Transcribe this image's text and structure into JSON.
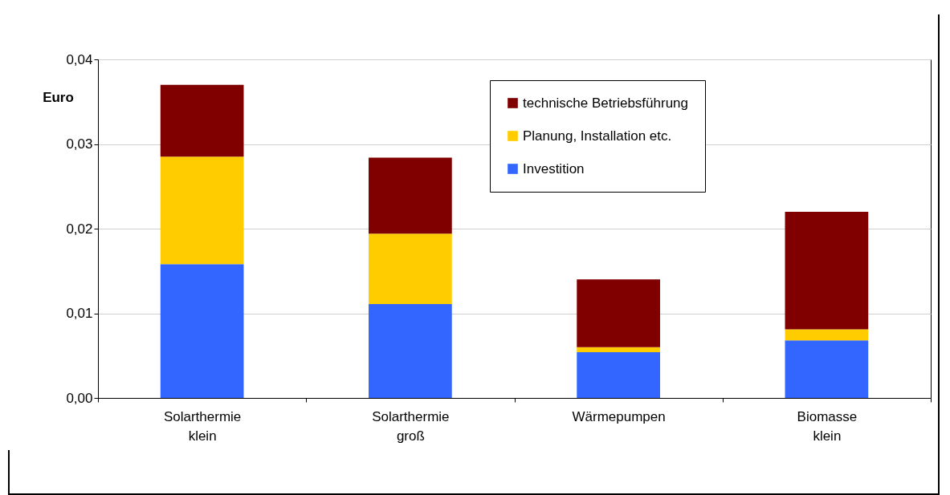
{
  "chart_data": {
    "type": "bar",
    "stacked": true,
    "ylabel": "Euro",
    "categories": [
      "Solarthermie\nklein",
      "Solarthermie\ngroß",
      "Wärmepumpen",
      "Biomasse\nklein"
    ],
    "series": [
      {
        "name": "Investition",
        "color": "#3366ff",
        "values": [
          0.0158,
          0.0111,
          0.0054,
          0.0068
        ]
      },
      {
        "name": "Planung, Installation etc.",
        "color": "#ffcc00",
        "values": [
          0.0127,
          0.0083,
          0.0006,
          0.0013
        ]
      },
      {
        "name": "technische Betriebsführung",
        "color": "#800000",
        "values": [
          0.0085,
          0.009,
          0.008,
          0.0139
        ]
      }
    ],
    "ylim": [
      0,
      0.04
    ],
    "yticks": [
      {
        "value": 0,
        "label": "0,00"
      },
      {
        "value": 0.01,
        "label": "0,01"
      },
      {
        "value": 0.02,
        "label": "0,02"
      },
      {
        "value": 0.03,
        "label": "0,03"
      },
      {
        "value": 0.04,
        "label": "0,04"
      }
    ],
    "grid": "y",
    "legend": "top right"
  }
}
